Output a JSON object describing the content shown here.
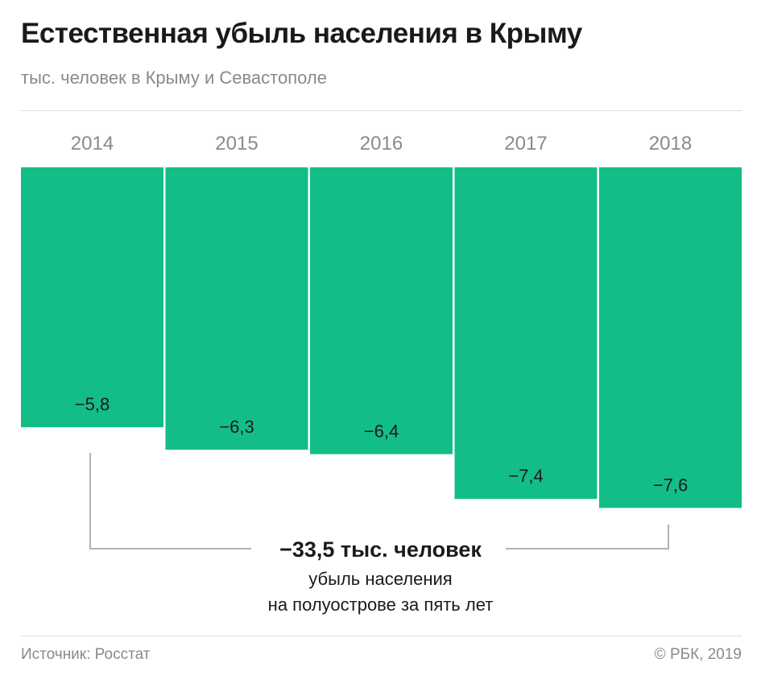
{
  "title": "Естественная убыль населения в Крыму",
  "subtitle": "тыс. человек в Крыму и Севастополе",
  "chart_data": {
    "type": "bar",
    "title": "Естественная убыль населения в Крыму",
    "subtitle": "тыс. человек в Крыму и Севастополе",
    "categories": [
      "2014",
      "2015",
      "2016",
      "2017",
      "2018"
    ],
    "values": [
      -5.8,
      -6.3,
      -6.4,
      -7.4,
      -7.6
    ],
    "labels": [
      "−5,8",
      "−6,3",
      "−6,4",
      "−7,4",
      "−7,6"
    ],
    "ylim": [
      -7.6,
      0
    ],
    "color": "#13bd88"
  },
  "annotation": {
    "total": "−33,5 тыс. человек",
    "line1": "убыль населения",
    "line2": "на полуострове за пять лет"
  },
  "footer": {
    "source": "Источник: Росстат",
    "copyright": "© РБК, 2019"
  }
}
